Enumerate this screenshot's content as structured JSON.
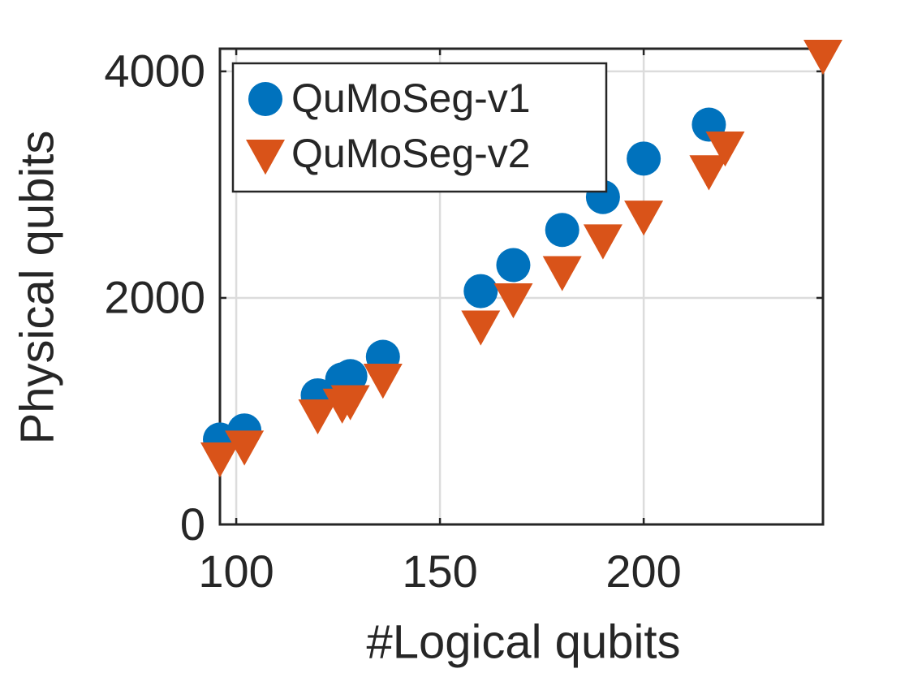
{
  "chart_data": {
    "type": "scatter",
    "x_label": "#Logical qubits",
    "y_label": "Physical qubits",
    "xlim": [
      96,
      244
    ],
    "ylim": [
      0,
      4200
    ],
    "xticks": [
      100,
      150,
      200
    ],
    "yticks": [
      0,
      2000,
      4000
    ],
    "grid": true,
    "legend": "upper left",
    "series": [
      {
        "name": "QuMoSeg-v1",
        "color": "#0072bd",
        "marker": "circle",
        "x": [
          96,
          102,
          120,
          126,
          128,
          136,
          160,
          168,
          180,
          190,
          200,
          216
        ],
        "values": [
          750,
          830,
          1140,
          1280,
          1310,
          1480,
          2060,
          2290,
          2600,
          2890,
          3230,
          3530
        ]
      },
      {
        "name": "QuMoSeg-v2",
        "color": "#d95319",
        "marker": "triangle-down",
        "x": [
          96,
          102,
          120,
          126,
          128,
          136,
          160,
          168,
          180,
          190,
          200,
          216,
          220,
          244
        ],
        "values": [
          595,
          700,
          975,
          1070,
          1100,
          1290,
          1760,
          2000,
          2240,
          2520,
          2730,
          3130,
          3340,
          4150
        ]
      }
    ]
  }
}
